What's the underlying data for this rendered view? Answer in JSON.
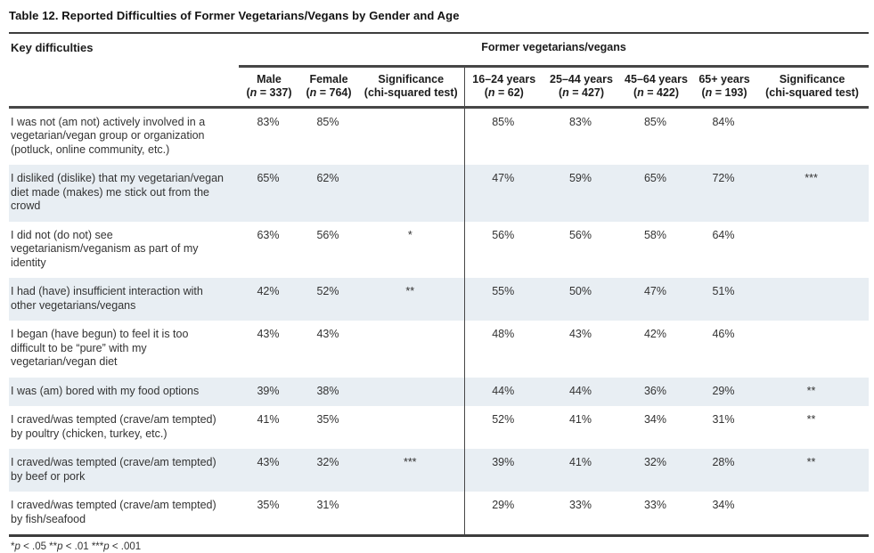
{
  "title": "Table 12. Reported Difficulties of Former Vegetarians/Vegans by Gender and Age",
  "table": {
    "corner_header": "Key difficulties",
    "group_header": "Former vegetarians/vegans",
    "columns": [
      {
        "label": "Male",
        "sub": "(n = 337)"
      },
      {
        "label": "Female",
        "sub": "(n = 764)"
      },
      {
        "label": "Significance",
        "sub": "(chi-squared test)"
      },
      {
        "label": "16–24 years",
        "sub": "(n = 62)"
      },
      {
        "label": "25–44 years",
        "sub": "(n = 427)"
      },
      {
        "label": "45–64 years",
        "sub": "(n = 422)"
      },
      {
        "label": "65+ years",
        "sub": "(n = 193)"
      },
      {
        "label": "Significance",
        "sub": "(chi-squared test)"
      }
    ],
    "rows": [
      {
        "label": "I was not (am not) actively involved in a vegetarian/vegan group or organization (potluck, online community, etc.)",
        "male": "83%",
        "female": "85%",
        "sig_gender": "",
        "a16": "85%",
        "a25": "83%",
        "a45": "85%",
        "a65": "84%",
        "sig_age": ""
      },
      {
        "label": "I disliked (dislike) that my vegetarian/vegan diet made (makes) me stick out from the crowd",
        "male": "65%",
        "female": "62%",
        "sig_gender": "",
        "a16": "47%",
        "a25": "59%",
        "a45": "65%",
        "a65": "72%",
        "sig_age": "***"
      },
      {
        "label": "I did not (do not) see vegetarianism/veganism as part of my identity",
        "male": "63%",
        "female": "56%",
        "sig_gender": "*",
        "a16": "56%",
        "a25": "56%",
        "a45": "58%",
        "a65": "64%",
        "sig_age": ""
      },
      {
        "label": "I had (have) insufficient interaction with other vegetarians/vegans",
        "male": "42%",
        "female": "52%",
        "sig_gender": "**",
        "a16": "55%",
        "a25": "50%",
        "a45": "47%",
        "a65": "51%",
        "sig_age": ""
      },
      {
        "label": "I began (have begun) to feel it is too difficult to be “pure” with my vegetarian/vegan diet",
        "male": "43%",
        "female": "43%",
        "sig_gender": "",
        "a16": "48%",
        "a25": "43%",
        "a45": "42%",
        "a65": "46%",
        "sig_age": ""
      },
      {
        "label": "I was (am) bored with my food options",
        "male": "39%",
        "female": "38%",
        "sig_gender": "",
        "a16": "44%",
        "a25": "44%",
        "a45": "36%",
        "a65": "29%",
        "sig_age": "**"
      },
      {
        "label": "I craved/was tempted (crave/am tempted) by poultry (chicken, turkey, etc.)",
        "male": "41%",
        "female": "35%",
        "sig_gender": "",
        "a16": "52%",
        "a25": "41%",
        "a45": "34%",
        "a65": "31%",
        "sig_age": "**"
      },
      {
        "label": "I craved/was tempted (crave/am tempted) by beef or pork",
        "male": "43%",
        "female": "32%",
        "sig_gender": "***",
        "a16": "39%",
        "a25": "41%",
        "a45": "32%",
        "a65": "28%",
        "sig_age": "**"
      },
      {
        "label": "I craved/was tempted (crave/am tempted) by fish/seafood",
        "male": "35%",
        "female": "31%",
        "sig_gender": "",
        "a16": "29%",
        "a25": "33%",
        "a45": "33%",
        "a65": "34%",
        "sig_age": ""
      }
    ]
  },
  "footnote": "*p < .05 **p < .01 ***p < .001"
}
